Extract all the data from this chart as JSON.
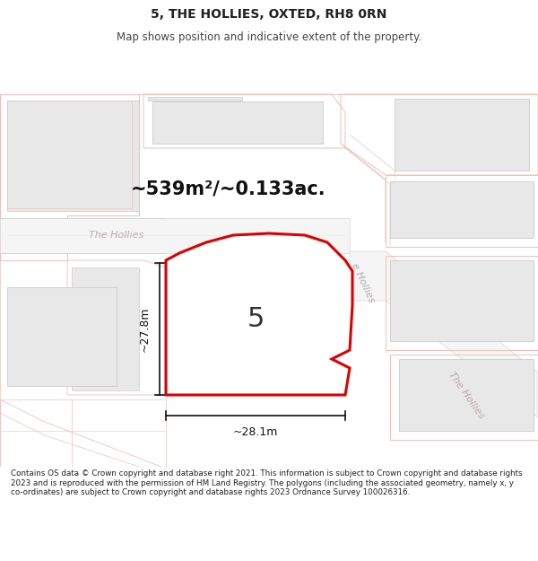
{
  "title": "5, THE HOLLIES, OXTED, RH8 0RN",
  "subtitle": "Map shows position and indicative extent of the property.",
  "area_text": "~539m²/~0.133ac.",
  "width_label": "~28.1m",
  "height_label": "~27.8m",
  "number_label": "5",
  "footer": "Contains OS data © Crown copyright and database right 2021. This information is subject to Crown copyright and database rights 2023 and is reproduced with the permission of HM Land Registry. The polygons (including the associated geometry, namely x, y co-ordinates) are subject to Crown copyright and database rights 2023 Ordnance Survey 100026316.",
  "map_bg": "#ffffff",
  "road_outline": "#f0c0c0",
  "building_fill": "#e8e8e8",
  "building_edge": "#cccccc",
  "plot_color": "#dd0000",
  "dim_color": "#111111",
  "street_color": "#bbaaaa",
  "title_color": "#222222",
  "footer_color": "#222222",
  "title_fontsize": 10,
  "subtitle_fontsize": 8.5,
  "area_fontsize": 15,
  "number_fontsize": 22,
  "dim_fontsize": 9,
  "street_fontsize": 8,
  "footer_fontsize": 6.3
}
